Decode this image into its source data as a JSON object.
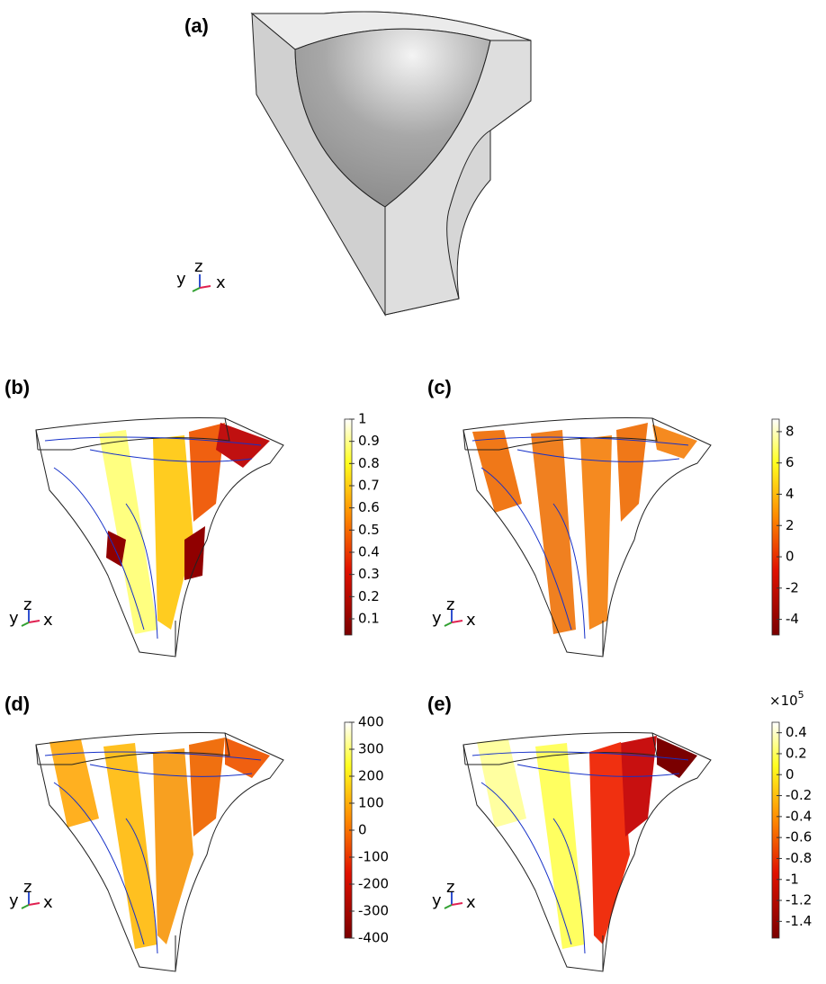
{
  "figure": {
    "panels": [
      {
        "label": "(a)",
        "axes": {
          "y": "y",
          "z": "z",
          "x": "x"
        }
      },
      {
        "label": "(b)",
        "axes": {
          "y": "y",
          "z": "z",
          "x": "x"
        },
        "colorbar": {
          "lim": [
            0.027,
            1
          ],
          "ticks": [
            0.1,
            0.2,
            0.3,
            0.4,
            0.5,
            0.6,
            0.7,
            0.8,
            0.9,
            1
          ]
        }
      },
      {
        "label": "(c)",
        "axes": {
          "y": "y",
          "z": "z",
          "x": "x"
        },
        "colorbar": {
          "lim": [
            -5,
            8.8
          ],
          "ticks": [
            -4,
            -2,
            0,
            2,
            4,
            6,
            8
          ]
        }
      },
      {
        "label": "(d)",
        "axes": {
          "y": "y",
          "z": "z",
          "x": "x"
        },
        "colorbar": {
          "lim": [
            -400,
            400
          ],
          "ticks": [
            -400,
            -300,
            -200,
            -100,
            0,
            100,
            200,
            300,
            400
          ]
        }
      },
      {
        "label": "(e)",
        "axes": {
          "y": "y",
          "z": "z",
          "x": "x"
        },
        "colorbar": {
          "lim": [
            -1.56,
            0.5
          ],
          "ticks": [
            -1.4,
            -1.2,
            -1,
            -0.8,
            -0.6,
            -0.4,
            -0.2,
            0,
            0.2,
            0.4
          ],
          "multiplier": {
            "base": "×10",
            "exponent": "5"
          }
        }
      }
    ]
  }
}
